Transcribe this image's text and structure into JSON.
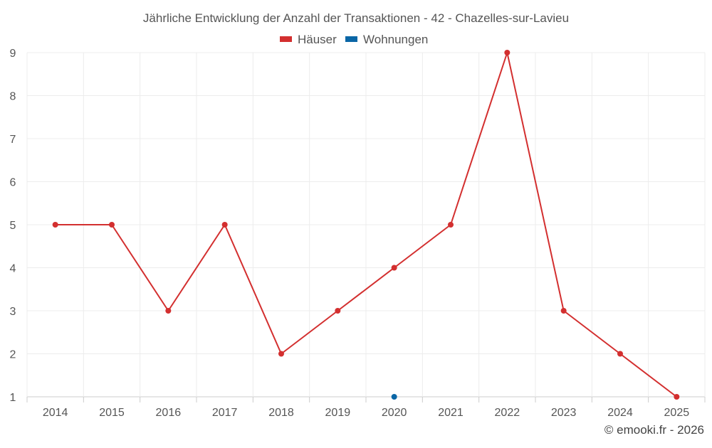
{
  "chart_data": {
    "type": "line",
    "title": "Jährliche Entwicklung der Anzahl der Transaktionen - 42 - Chazelles-sur-Lavieu",
    "xlabel": "",
    "ylabel": "",
    "categories": [
      "2014",
      "2015",
      "2016",
      "2017",
      "2018",
      "2019",
      "2020",
      "2021",
      "2022",
      "2023",
      "2024",
      "2025"
    ],
    "ylim": [
      1,
      9
    ],
    "yticks": [
      1,
      2,
      3,
      4,
      5,
      6,
      7,
      8,
      9
    ],
    "grid": true,
    "legend_position": "top-center",
    "series": [
      {
        "name": "Häuser",
        "color": "#d32f2f",
        "values": [
          5,
          5,
          3,
          5,
          2,
          3,
          4,
          5,
          9,
          3,
          2,
          1
        ]
      },
      {
        "name": "Wohnungen",
        "color": "#0a66a6",
        "values": [
          null,
          null,
          null,
          null,
          null,
          null,
          1,
          null,
          null,
          null,
          null,
          null
        ]
      }
    ]
  },
  "footer": {
    "credit": "© emooki.fr - 2026"
  }
}
